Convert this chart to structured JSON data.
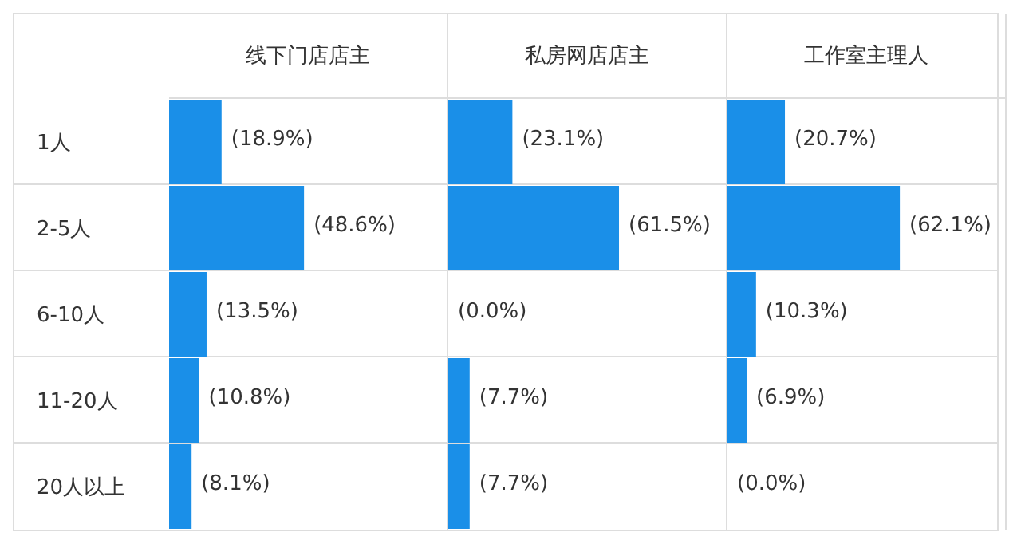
{
  "chart_data": [
    {
      "type": "bar",
      "orientation": "horizontal",
      "title": "线下门店店主",
      "categories": [
        "1人",
        "2-5人",
        "6-10人",
        "11-20人",
        "20人以上"
      ],
      "values": [
        18.9,
        48.6,
        13.5,
        10.8,
        8.1
      ],
      "value_labels": [
        "(18.9%)",
        "(48.6%)",
        "(13.5%)",
        "(10.8%)",
        "(8.1%)"
      ],
      "color": "#1a8fe8",
      "xlim": [
        0,
        100
      ],
      "tick_labels": "y"
    },
    {
      "type": "bar",
      "orientation": "horizontal",
      "title": "私房网店店主",
      "categories": [
        null,
        null,
        null,
        null,
        null
      ],
      "values": [
        23.1,
        61.5,
        0.0,
        7.7,
        7.7
      ],
      "value_labels": [
        "(23.1%)",
        "(61.5%)",
        "(0.0%)",
        "(7.7%)",
        "(7.7%)"
      ],
      "color": "#1a8fe8",
      "xlim": [
        0,
        100
      ],
      "tick_labels": false
    },
    {
      "type": "bar",
      "orientation": "horizontal",
      "title": "工作室主理人",
      "categories": [
        null,
        null,
        null,
        null,
        null
      ],
      "values": [
        20.7,
        62.1,
        10.3,
        6.9,
        0.0
      ],
      "value_labels": [
        "(20.7%)",
        "(62.1%)",
        "(10.3%)",
        "(6.9%)",
        "(0.0%)"
      ],
      "color": "#1a8fe8",
      "xlim": [
        0,
        100
      ],
      "tick_labels": false
    }
  ]
}
